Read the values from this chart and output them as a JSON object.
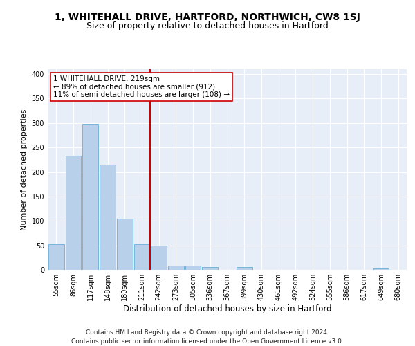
{
  "title1": "1, WHITEHALL DRIVE, HARTFORD, NORTHWICH, CW8 1SJ",
  "title2": "Size of property relative to detached houses in Hartford",
  "xlabel": "Distribution of detached houses by size in Hartford",
  "ylabel": "Number of detached properties",
  "bin_labels": [
    "55sqm",
    "86sqm",
    "117sqm",
    "148sqm",
    "180sqm",
    "211sqm",
    "242sqm",
    "273sqm",
    "305sqm",
    "336sqm",
    "367sqm",
    "399sqm",
    "430sqm",
    "461sqm",
    "492sqm",
    "524sqm",
    "555sqm",
    "586sqm",
    "617sqm",
    "649sqm",
    "680sqm"
  ],
  "bar_values": [
    52,
    233,
    298,
    215,
    104,
    52,
    49,
    9,
    9,
    6,
    0,
    5,
    0,
    0,
    0,
    0,
    0,
    0,
    0,
    3,
    0
  ],
  "bar_color": "#b8d0ea",
  "bar_edge_color": "#6aaed6",
  "background_color": "#e8eef8",
  "grid_color": "#ffffff",
  "vline_color": "#cc0000",
  "annotation_line1": "1 WHITEHALL DRIVE: 219sqm",
  "annotation_line2": "← 89% of detached houses are smaller (912)",
  "annotation_line3": "11% of semi-detached houses are larger (108) →",
  "annotation_box_color": "#ffffff",
  "annotation_box_edge": "#cc0000",
  "ylim": [
    0,
    410
  ],
  "yticks": [
    0,
    50,
    100,
    150,
    200,
    250,
    300,
    350,
    400
  ],
  "footer": "Contains HM Land Registry data © Crown copyright and database right 2024.\nContains public sector information licensed under the Open Government Licence v3.0.",
  "title1_fontsize": 10,
  "title2_fontsize": 9,
  "xlabel_fontsize": 8.5,
  "ylabel_fontsize": 8,
  "tick_fontsize": 7,
  "footer_fontsize": 6.5,
  "annot_fontsize": 7.5
}
